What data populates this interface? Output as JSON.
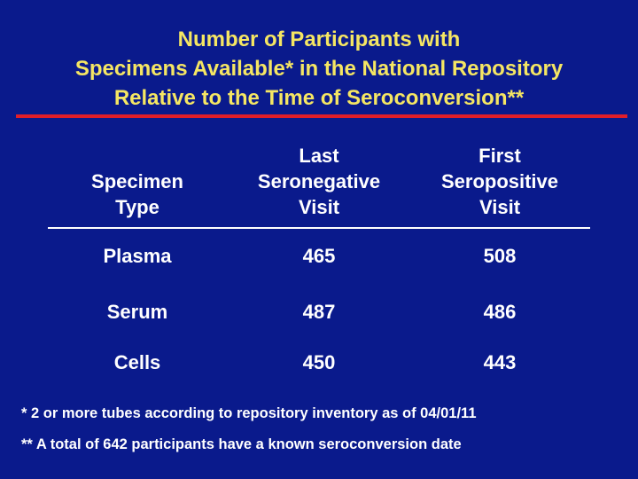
{
  "title": {
    "line1": "Number of Participants with",
    "line2": "Specimens Available* in the National Repository",
    "line3": "Relative to the Time of Seroconversion**"
  },
  "table": {
    "headers": {
      "specimen_type": [
        "Specimen",
        "Type"
      ],
      "last_seronegative": [
        "Last",
        "Seronegative",
        "Visit"
      ],
      "first_seropositive": [
        "First",
        "Seropositive",
        "Visit"
      ]
    },
    "rows": [
      {
        "type": "Plasma",
        "last_seronegative": "465",
        "first_seropositive": "508"
      },
      {
        "type": "Serum",
        "last_seronegative": "487",
        "first_seropositive": "486"
      },
      {
        "type": "Cells",
        "last_seronegative": "450",
        "first_seropositive": "443"
      }
    ]
  },
  "footnotes": [
    "* 2 or more tubes according to repository inventory as of 04/01/11",
    "** A total of 642 participants have a known seroconversion date"
  ],
  "colors": {
    "background": "#0a1a8c",
    "title": "#f5e663",
    "rule": "#e01e2a",
    "text": "#ffffff"
  }
}
